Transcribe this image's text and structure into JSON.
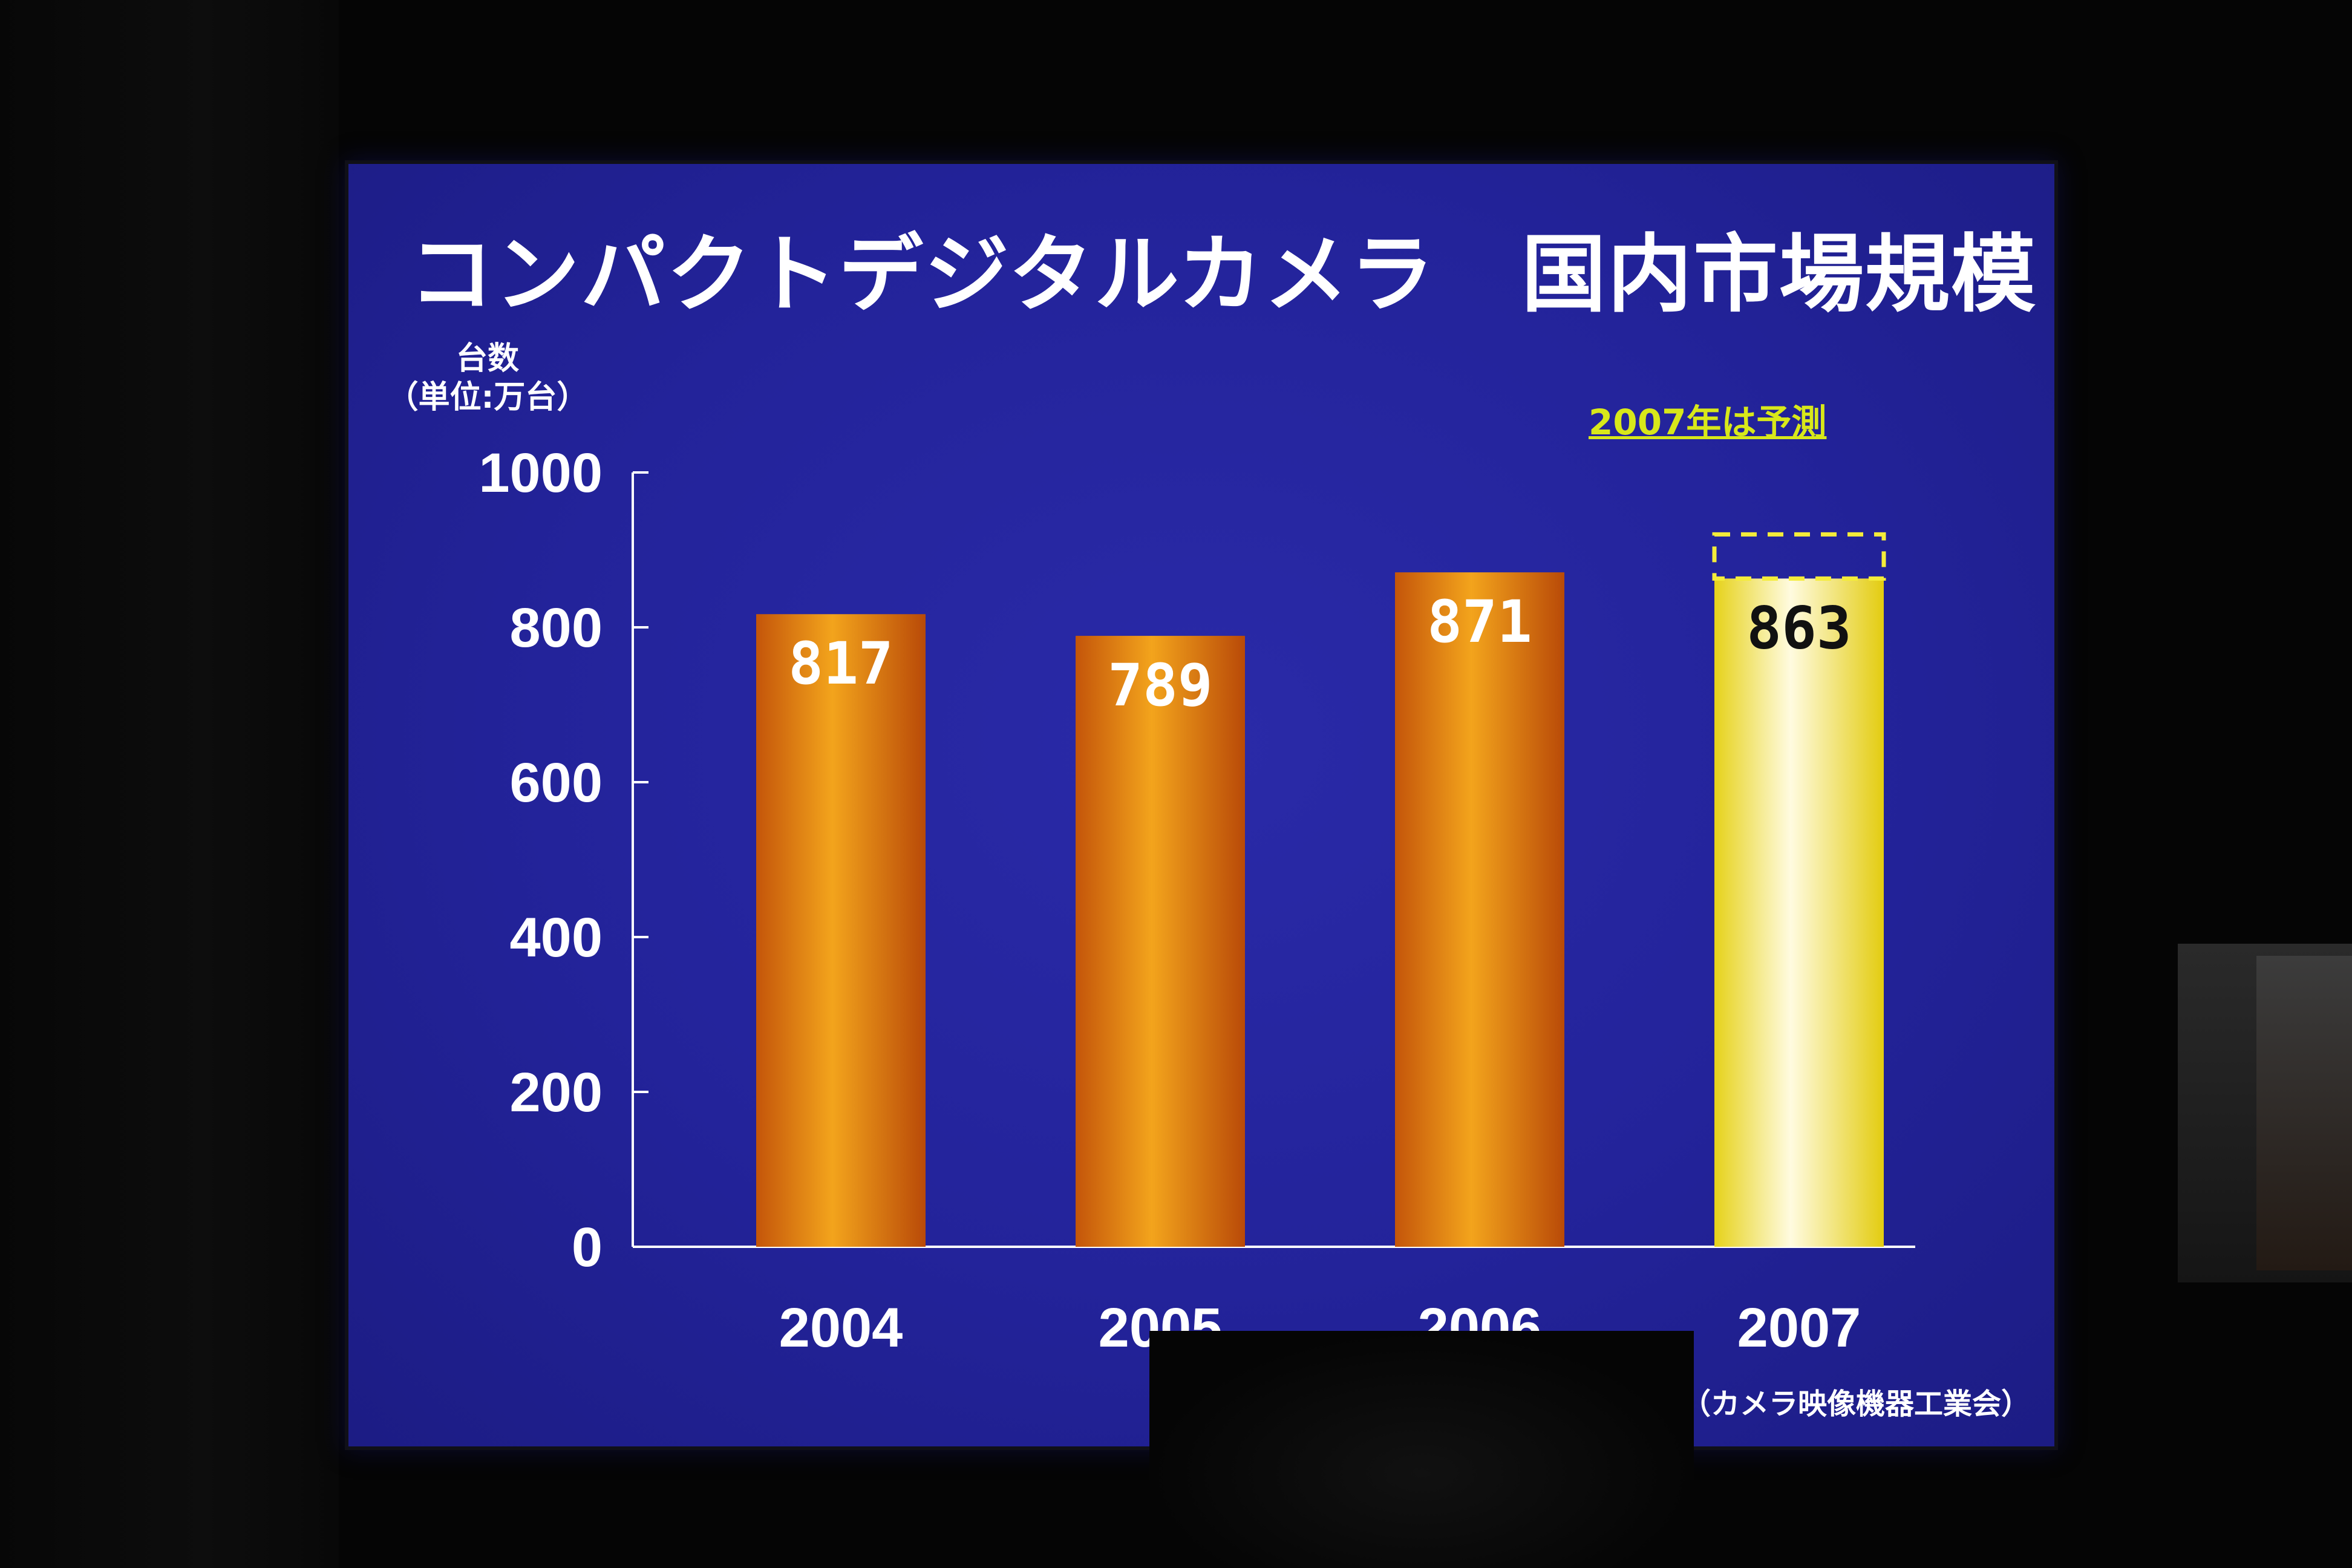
{
  "slide": {
    "title": "コンパクトデジタルカメラ　国内市場規模",
    "y_unit_line1": "台数",
    "y_unit_line2": "（単位:万台）",
    "forecast_note": "2007年は予測",
    "source": "出典：CIPA（カメラ映像機器工業会）"
  },
  "colors": {
    "background": "#23239a",
    "bar_actual": "#e07a10",
    "bar_forecast": "#f4ec3a",
    "forecast_note": "#d8e81a",
    "text": "#ffffff",
    "forecast_value_text": "#111111"
  },
  "chart_data": {
    "type": "bar",
    "categories": [
      "2004",
      "2005",
      "2006",
      "2007"
    ],
    "values": [
      817,
      789,
      871,
      863
    ],
    "value_labels": [
      "817",
      "789",
      "871",
      "863"
    ],
    "forecast": [
      false,
      false,
      false,
      true
    ],
    "forecast_range_upper": 920,
    "ylim": [
      0,
      1000
    ],
    "yticks": [
      0,
      200,
      400,
      600,
      800,
      1000
    ],
    "grid": false,
    "legend": "none"
  }
}
